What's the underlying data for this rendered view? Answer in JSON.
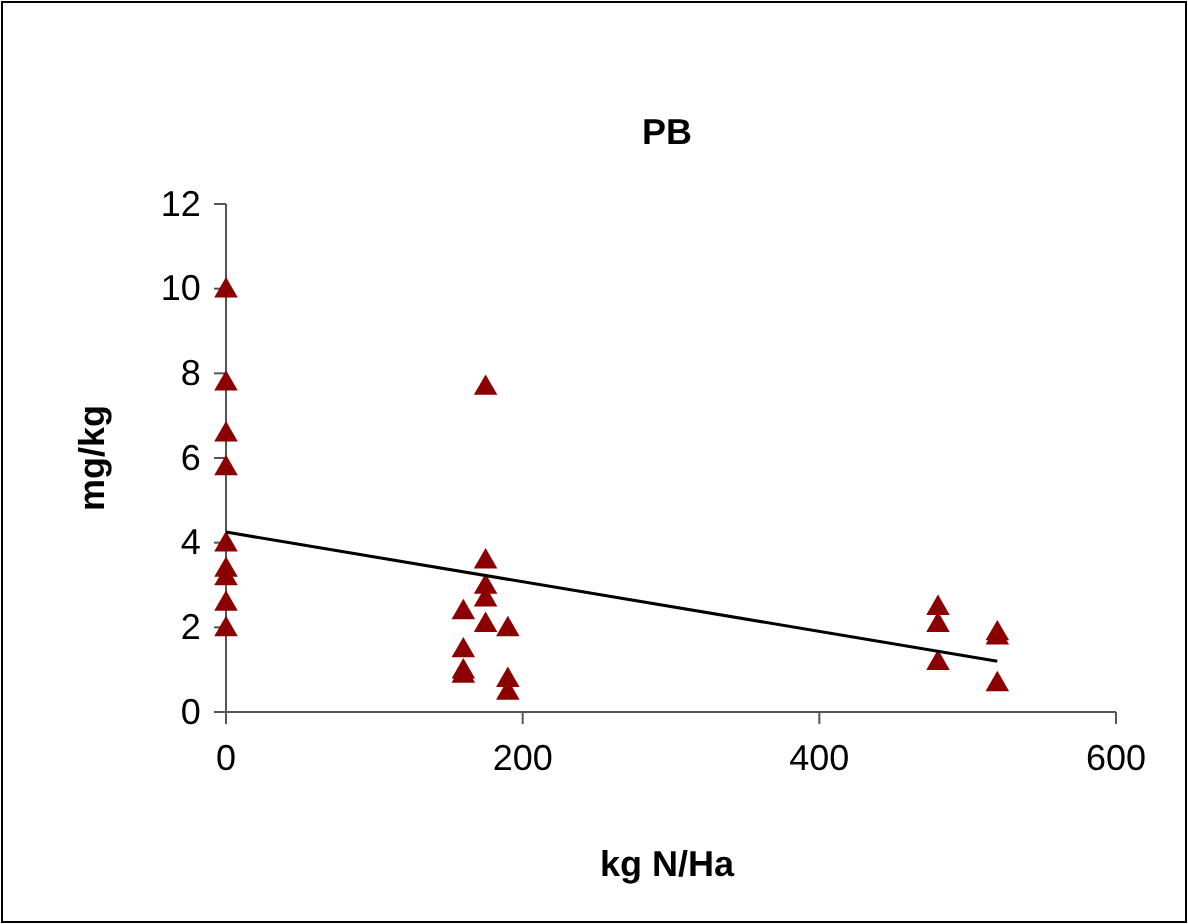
{
  "chart_data": {
    "type": "scatter",
    "title": "PB",
    "xlabel": "kg N/Ha",
    "ylabel": "mg/kg",
    "xlim": [
      0,
      600
    ],
    "xticks": [
      0,
      200,
      400,
      600
    ],
    "ylim": [
      0,
      12
    ],
    "yticks": [
      0,
      2,
      4,
      6,
      8,
      10,
      12
    ],
    "grid": false,
    "marker": "triangle",
    "series": [
      {
        "color": "#8b0000",
        "x": [
          0,
          0,
          0,
          0,
          0,
          0,
          0,
          0,
          0,
          160,
          160,
          160,
          160,
          175,
          175,
          175,
          175,
          175,
          190,
          190,
          190,
          480,
          480,
          480,
          520,
          520,
          520
        ],
        "values": [
          10,
          7.8,
          6.6,
          5.8,
          4.0,
          3.4,
          3.2,
          2.6,
          2.0,
          2.4,
          1.5,
          1.0,
          0.9,
          7.7,
          3.6,
          3.0,
          2.7,
          2.1,
          2.0,
          0.8,
          0.5,
          2.5,
          2.1,
          1.2,
          1.9,
          1.8,
          0.7
        ]
      },
      {
        "type": "line",
        "color": "#000000",
        "x": [
          0,
          520
        ],
        "values": [
          4.25,
          1.2
        ],
        "marker": "none"
      }
    ]
  }
}
